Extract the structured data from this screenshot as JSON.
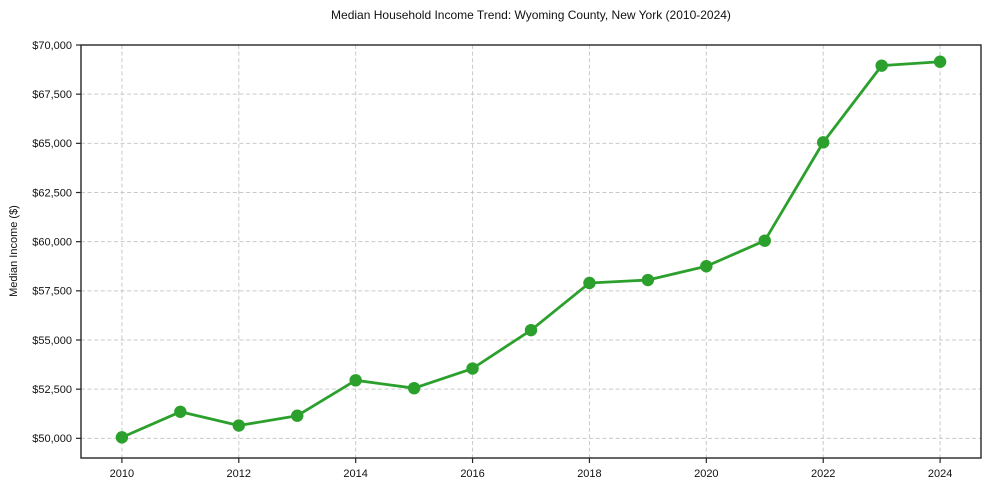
{
  "chart_data": {
    "type": "line",
    "title": "Median Household Income Trend: Wyoming County, New York (2010-2024)",
    "ylabel": "Median Income ($)",
    "xlabel": "",
    "x": [
      2010,
      2011,
      2012,
      2013,
      2014,
      2015,
      2016,
      2017,
      2018,
      2019,
      2020,
      2021,
      2022,
      2023,
      2024
    ],
    "values": [
      50050,
      51350,
      50650,
      51150,
      52950,
      52550,
      53550,
      55500,
      57900,
      58050,
      58750,
      60050,
      65050,
      68950,
      69150
    ],
    "ylim": [
      49000,
      70000
    ],
    "yticks": [
      50000,
      52500,
      55000,
      57500,
      60000,
      62500,
      65000,
      67500,
      70000
    ],
    "ytick_labels": [
      "$50,000",
      "$52,500",
      "$55,000",
      "$57,500",
      "$60,000",
      "$62,500",
      "$65,000",
      "$67,500",
      "$70,000"
    ],
    "xticks": [
      2010,
      2012,
      2014,
      2016,
      2018,
      2020,
      2022,
      2024
    ],
    "xtick_labels": [
      "2010",
      "2012",
      "2014",
      "2016",
      "2018",
      "2020",
      "2022",
      "2024"
    ],
    "grid": true,
    "grid_style": "dashed",
    "legend_position": "none",
    "line_color": "#2ca02c",
    "marker": "circle",
    "background_color": "#ffffff"
  }
}
